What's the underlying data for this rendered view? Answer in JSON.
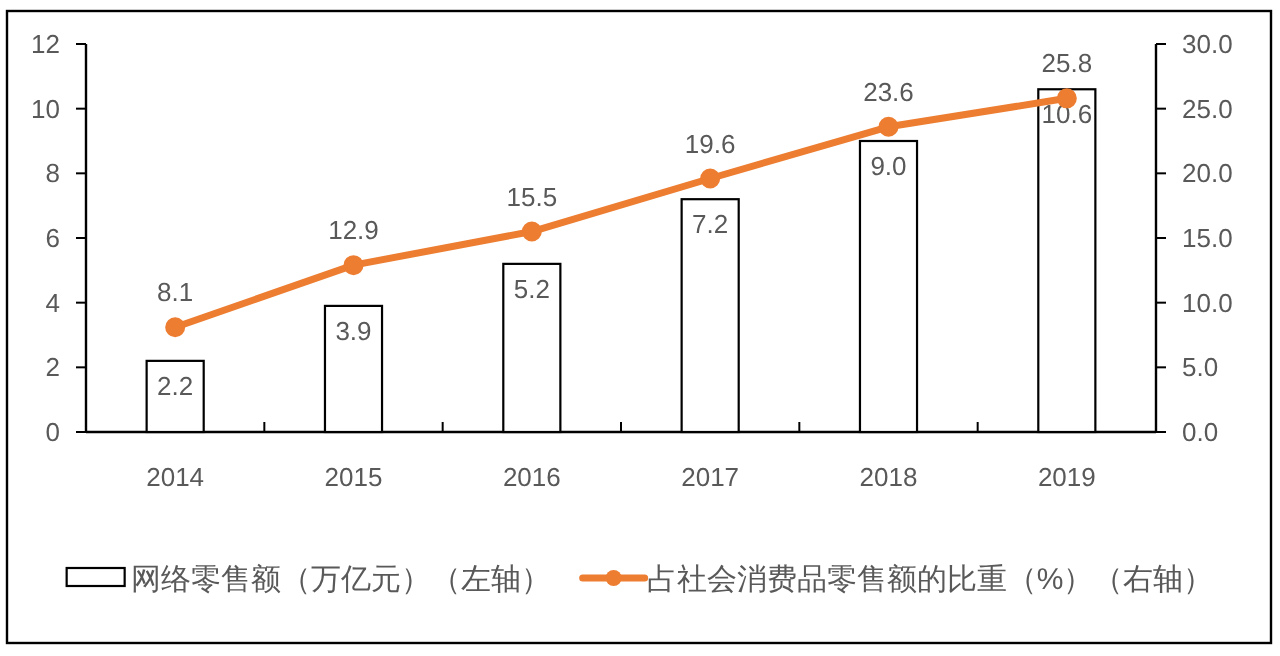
{
  "chart_data": {
    "type": "bar",
    "categories": [
      "2014",
      "2015",
      "2016",
      "2017",
      "2018",
      "2019"
    ],
    "series": [
      {
        "name": "网络零售额（万亿元）（左轴）",
        "color": "#ffffff",
        "values": [
          2.2,
          3.9,
          5.2,
          7.2,
          9.0,
          10.6
        ],
        "value_labels": [
          "2.2",
          "3.9",
          "5.2",
          "7.2",
          "9.0",
          "10.6"
        ]
      },
      {
        "name": "占社会消费品零售额的比重（%）（右轴）",
        "type": "line",
        "axis": "y2",
        "color": "#ed7d31",
        "values": [
          8.1,
          12.9,
          15.5,
          19.6,
          23.6,
          25.8
        ],
        "value_labels": [
          "8.1",
          "12.9",
          "15.5",
          "19.6",
          "23.6",
          "25.8"
        ]
      }
    ],
    "ylim": [
      0,
      12
    ],
    "yticks": [
      0,
      2,
      4,
      6,
      8,
      10,
      12
    ],
    "y2lim": [
      0,
      30
    ],
    "y2ticks": [
      {
        "value": 0,
        "label": "0.0"
      },
      {
        "value": 5,
        "label": "5.0"
      },
      {
        "value": 10,
        "label": "10.0"
      },
      {
        "value": 15,
        "label": "15.0"
      },
      {
        "value": 20,
        "label": "20.0"
      },
      {
        "value": 25,
        "label": "25.0"
      },
      {
        "value": 30,
        "label": "30.0"
      }
    ],
    "marker": "circle",
    "line_style": "solid",
    "legend": "bottom"
  }
}
